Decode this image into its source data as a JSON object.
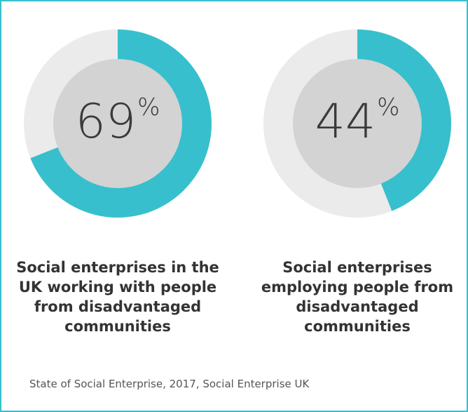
{
  "chart_data": [
    {
      "type": "pie",
      "value": 69,
      "value_text": "69",
      "unit": "%",
      "caption": "Social enterprises in the UK working with people from disadvantaged communities",
      "colors": {
        "fill": "#38bfcd",
        "remainder": "#ebebeb",
        "center": "#d3d3d3"
      }
    },
    {
      "type": "pie",
      "value": 44,
      "value_text": "44",
      "unit": "%",
      "caption": "Social enterprises employing people from disadvantaged communities",
      "colors": {
        "fill": "#38bfcd",
        "remainder": "#ebebeb",
        "center": "#d3d3d3"
      }
    }
  ],
  "source": "State of Social Enterprise, 2017, Social Enterprise UK"
}
